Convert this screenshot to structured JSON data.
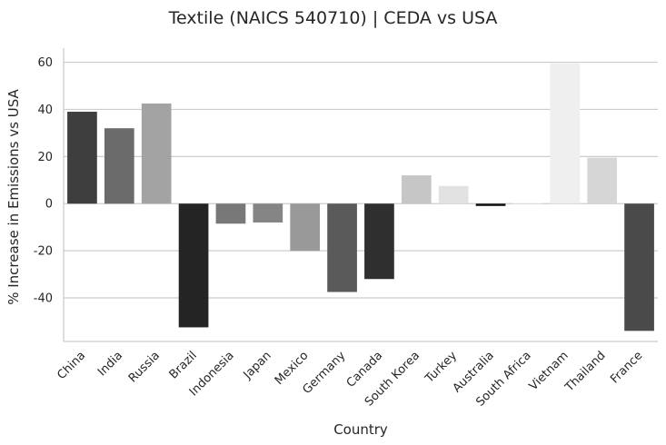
{
  "chart_data": {
    "type": "bar",
    "title": "Textile (NAICS 540710) | CEDA vs USA",
    "xlabel": "Country",
    "ylabel": "% Increase in Emissions vs USA",
    "categories": [
      "China",
      "India",
      "Russia",
      "Brazil",
      "Indonesia",
      "Japan",
      "Mexico",
      "Germany",
      "Canada",
      "South Korea",
      "Turkey",
      "Australia",
      "South Africa",
      "Vietnam",
      "Thailand",
      "France"
    ],
    "values": [
      39,
      32,
      42.5,
      -52.5,
      -8.5,
      -8,
      -20,
      -37.5,
      -32,
      12,
      7.5,
      -1,
      0.5,
      59.5,
      19.5,
      -54
    ],
    "colors": [
      "#3e3e3e",
      "#6b6b6b",
      "#a3a3a3",
      "#242424",
      "#787878",
      "#858585",
      "#999999",
      "#5a5a5a",
      "#2f2f2f",
      "#c6c6c6",
      "#e2e2e2",
      "#141414",
      "#f8f8f8",
      "#efefef",
      "#d6d6d6",
      "#4a4a4a"
    ],
    "yticks": [
      -40,
      -20,
      0,
      20,
      40,
      60
    ],
    "ylim": [
      -58.5,
      66
    ],
    "grid": "horizontal"
  }
}
